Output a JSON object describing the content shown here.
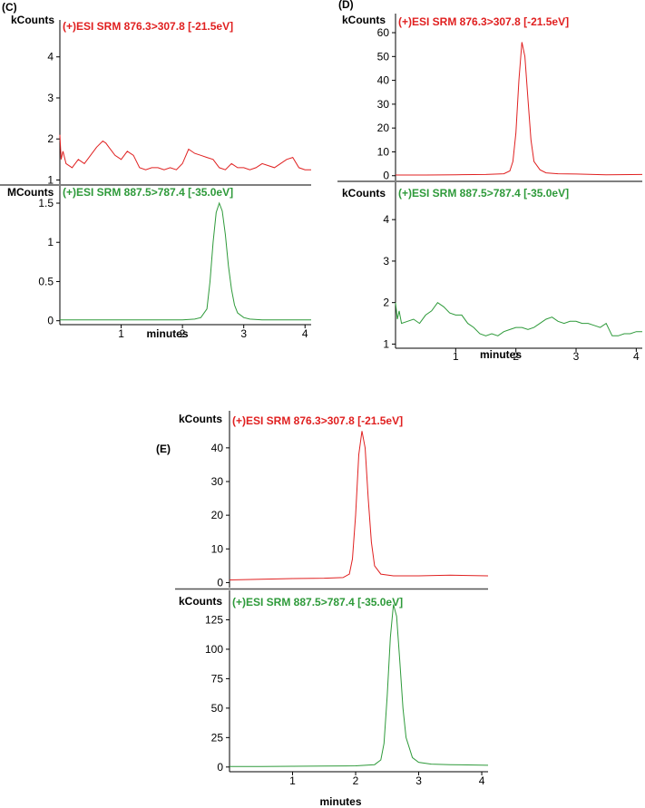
{
  "chart_data": [
    {
      "type": "line",
      "panel_label": "(C)",
      "x_label": "minutes",
      "x_range": [
        0,
        4.1
      ],
      "x_ticks": [
        1,
        2,
        3,
        4
      ],
      "subplots": [
        {
          "title": "(+)ESI SRM 876.3>307.8 [-21.5eV]",
          "unit": "kCounts",
          "color": "#e02020",
          "y_range": [
            0.9,
            4.9
          ],
          "y_ticks": [
            1,
            2,
            3,
            4
          ],
          "x": [
            0.0,
            0.02,
            0.05,
            0.1,
            0.2,
            0.3,
            0.4,
            0.5,
            0.6,
            0.7,
            0.75,
            0.8,
            0.9,
            1.0,
            1.1,
            1.2,
            1.3,
            1.4,
            1.5,
            1.6,
            1.7,
            1.8,
            1.9,
            2.0,
            2.1,
            2.2,
            2.3,
            2.4,
            2.5,
            2.6,
            2.7,
            2.8,
            2.9,
            3.0,
            3.1,
            3.2,
            3.3,
            3.4,
            3.5,
            3.6,
            3.7,
            3.8,
            3.9,
            4.0,
            4.1
          ],
          "y": [
            2.1,
            1.5,
            1.7,
            1.4,
            1.3,
            1.5,
            1.4,
            1.6,
            1.8,
            1.95,
            1.9,
            1.8,
            1.6,
            1.5,
            1.7,
            1.6,
            1.3,
            1.25,
            1.3,
            1.3,
            1.25,
            1.3,
            1.25,
            1.4,
            1.75,
            1.65,
            1.6,
            1.55,
            1.5,
            1.3,
            1.25,
            1.4,
            1.3,
            1.3,
            1.25,
            1.3,
            1.4,
            1.35,
            1.3,
            1.4,
            1.5,
            1.55,
            1.3,
            1.25,
            1.25
          ]
        },
        {
          "title": "(+)ESI SRM 887.5>787.4 [-35.0eV]",
          "unit": "MCounts",
          "color": "#2e9a3a",
          "y_range": [
            -0.05,
            1.72
          ],
          "y_ticks": [
            0,
            0.5,
            1,
            1.5
          ],
          "x": [
            0.0,
            0.5,
            1.0,
            1.5,
            2.0,
            2.2,
            2.3,
            2.4,
            2.45,
            2.5,
            2.55,
            2.6,
            2.65,
            2.7,
            2.75,
            2.8,
            2.85,
            2.9,
            3.0,
            3.1,
            3.3,
            3.6,
            4.1
          ],
          "y": [
            0.01,
            0.01,
            0.01,
            0.01,
            0.01,
            0.02,
            0.04,
            0.15,
            0.5,
            1.0,
            1.38,
            1.5,
            1.4,
            1.1,
            0.7,
            0.4,
            0.2,
            0.1,
            0.04,
            0.02,
            0.01,
            0.01,
            0.01
          ]
        }
      ]
    },
    {
      "type": "line",
      "panel_label": "(D)",
      "x_label": "minutes",
      "x_range": [
        0,
        4.1
      ],
      "x_ticks": [
        1,
        2,
        3,
        4
      ],
      "subplots": [
        {
          "title": "(+)ESI SRM 876.3>307.8 [-21.5eV]",
          "unit": "kCounts",
          "color": "#e02020",
          "y_range": [
            -2,
            68
          ],
          "y_ticks": [
            0,
            10,
            20,
            30,
            40,
            50,
            60
          ],
          "x": [
            0.0,
            0.5,
            1.0,
            1.5,
            1.8,
            1.9,
            1.95,
            2.0,
            2.05,
            2.1,
            2.15,
            2.2,
            2.25,
            2.3,
            2.4,
            2.5,
            2.7,
            3.0,
            3.5,
            4.1
          ],
          "y": [
            0.3,
            0.3,
            0.4,
            0.5,
            0.8,
            2.0,
            6.0,
            18.0,
            40.0,
            56.0,
            50.0,
            32.0,
            15.0,
            6.0,
            2.5,
            1.2,
            0.8,
            0.7,
            0.4,
            0.5
          ]
        },
        {
          "title": "(+)ESI SRM 887.5>787.4 [-35.0eV]",
          "unit": "kCounts",
          "color": "#2e9a3a",
          "y_range": [
            0.9,
            4.9
          ],
          "y_ticks": [
            1,
            2,
            3,
            4
          ],
          "x": [
            0.0,
            0.03,
            0.06,
            0.1,
            0.2,
            0.3,
            0.4,
            0.5,
            0.6,
            0.7,
            0.8,
            0.9,
            1.0,
            1.1,
            1.2,
            1.3,
            1.4,
            1.5,
            1.6,
            1.7,
            1.8,
            1.9,
            2.0,
            2.1,
            2.2,
            2.3,
            2.4,
            2.5,
            2.6,
            2.7,
            2.8,
            2.9,
            3.0,
            3.1,
            3.2,
            3.3,
            3.4,
            3.5,
            3.6,
            3.7,
            3.8,
            3.9,
            4.0,
            4.1
          ],
          "y": [
            2.0,
            1.6,
            1.8,
            1.5,
            1.55,
            1.6,
            1.5,
            1.7,
            1.8,
            2.0,
            1.9,
            1.75,
            1.7,
            1.7,
            1.5,
            1.4,
            1.25,
            1.2,
            1.25,
            1.2,
            1.3,
            1.35,
            1.4,
            1.4,
            1.35,
            1.4,
            1.5,
            1.6,
            1.65,
            1.55,
            1.5,
            1.55,
            1.55,
            1.5,
            1.5,
            1.45,
            1.4,
            1.5,
            1.2,
            1.2,
            1.25,
            1.25,
            1.3,
            1.3
          ]
        }
      ]
    },
    {
      "type": "line",
      "panel_label": "(E)",
      "x_label": "minutes",
      "x_range": [
        0,
        4.1
      ],
      "x_ticks": [
        1,
        2,
        3,
        4
      ],
      "subplots": [
        {
          "title": "(+)ESI SRM 876.3>307.8 [-21.5eV]",
          "unit": "kCounts",
          "color": "#e02020",
          "y_range": [
            -1.5,
            51
          ],
          "y_ticks": [
            0,
            10,
            20,
            30,
            40
          ],
          "x": [
            0.0,
            0.5,
            1.0,
            1.5,
            1.8,
            1.9,
            1.95,
            2.0,
            2.05,
            2.1,
            2.15,
            2.2,
            2.25,
            2.3,
            2.4,
            2.6,
            3.0,
            3.5,
            4.1
          ],
          "y": [
            0.8,
            1.0,
            1.2,
            1.3,
            1.5,
            2.5,
            7.0,
            20.0,
            38.0,
            45.0,
            40.0,
            25.0,
            12.0,
            5.0,
            2.5,
            2.0,
            2.0,
            2.2,
            2.0
          ]
        },
        {
          "title": "(+)ESI SRM 887.5>787.4 [-35.0eV]",
          "unit": "kCounts",
          "color": "#2e9a3a",
          "y_range": [
            -4,
            150
          ],
          "y_ticks": [
            0,
            25,
            50,
            75,
            100,
            125
          ],
          "x": [
            0.0,
            0.5,
            1.0,
            1.5,
            2.0,
            2.3,
            2.4,
            2.45,
            2.5,
            2.55,
            2.6,
            2.65,
            2.7,
            2.75,
            2.8,
            2.9,
            3.0,
            3.2,
            3.5,
            4.1
          ],
          "y": [
            0.5,
            0.5,
            0.6,
            0.8,
            1.0,
            2.0,
            6.0,
            20.0,
            60.0,
            110.0,
            138.0,
            128.0,
            90.0,
            50.0,
            25.0,
            8.0,
            4.0,
            2.5,
            2.0,
            1.5
          ]
        }
      ]
    }
  ]
}
